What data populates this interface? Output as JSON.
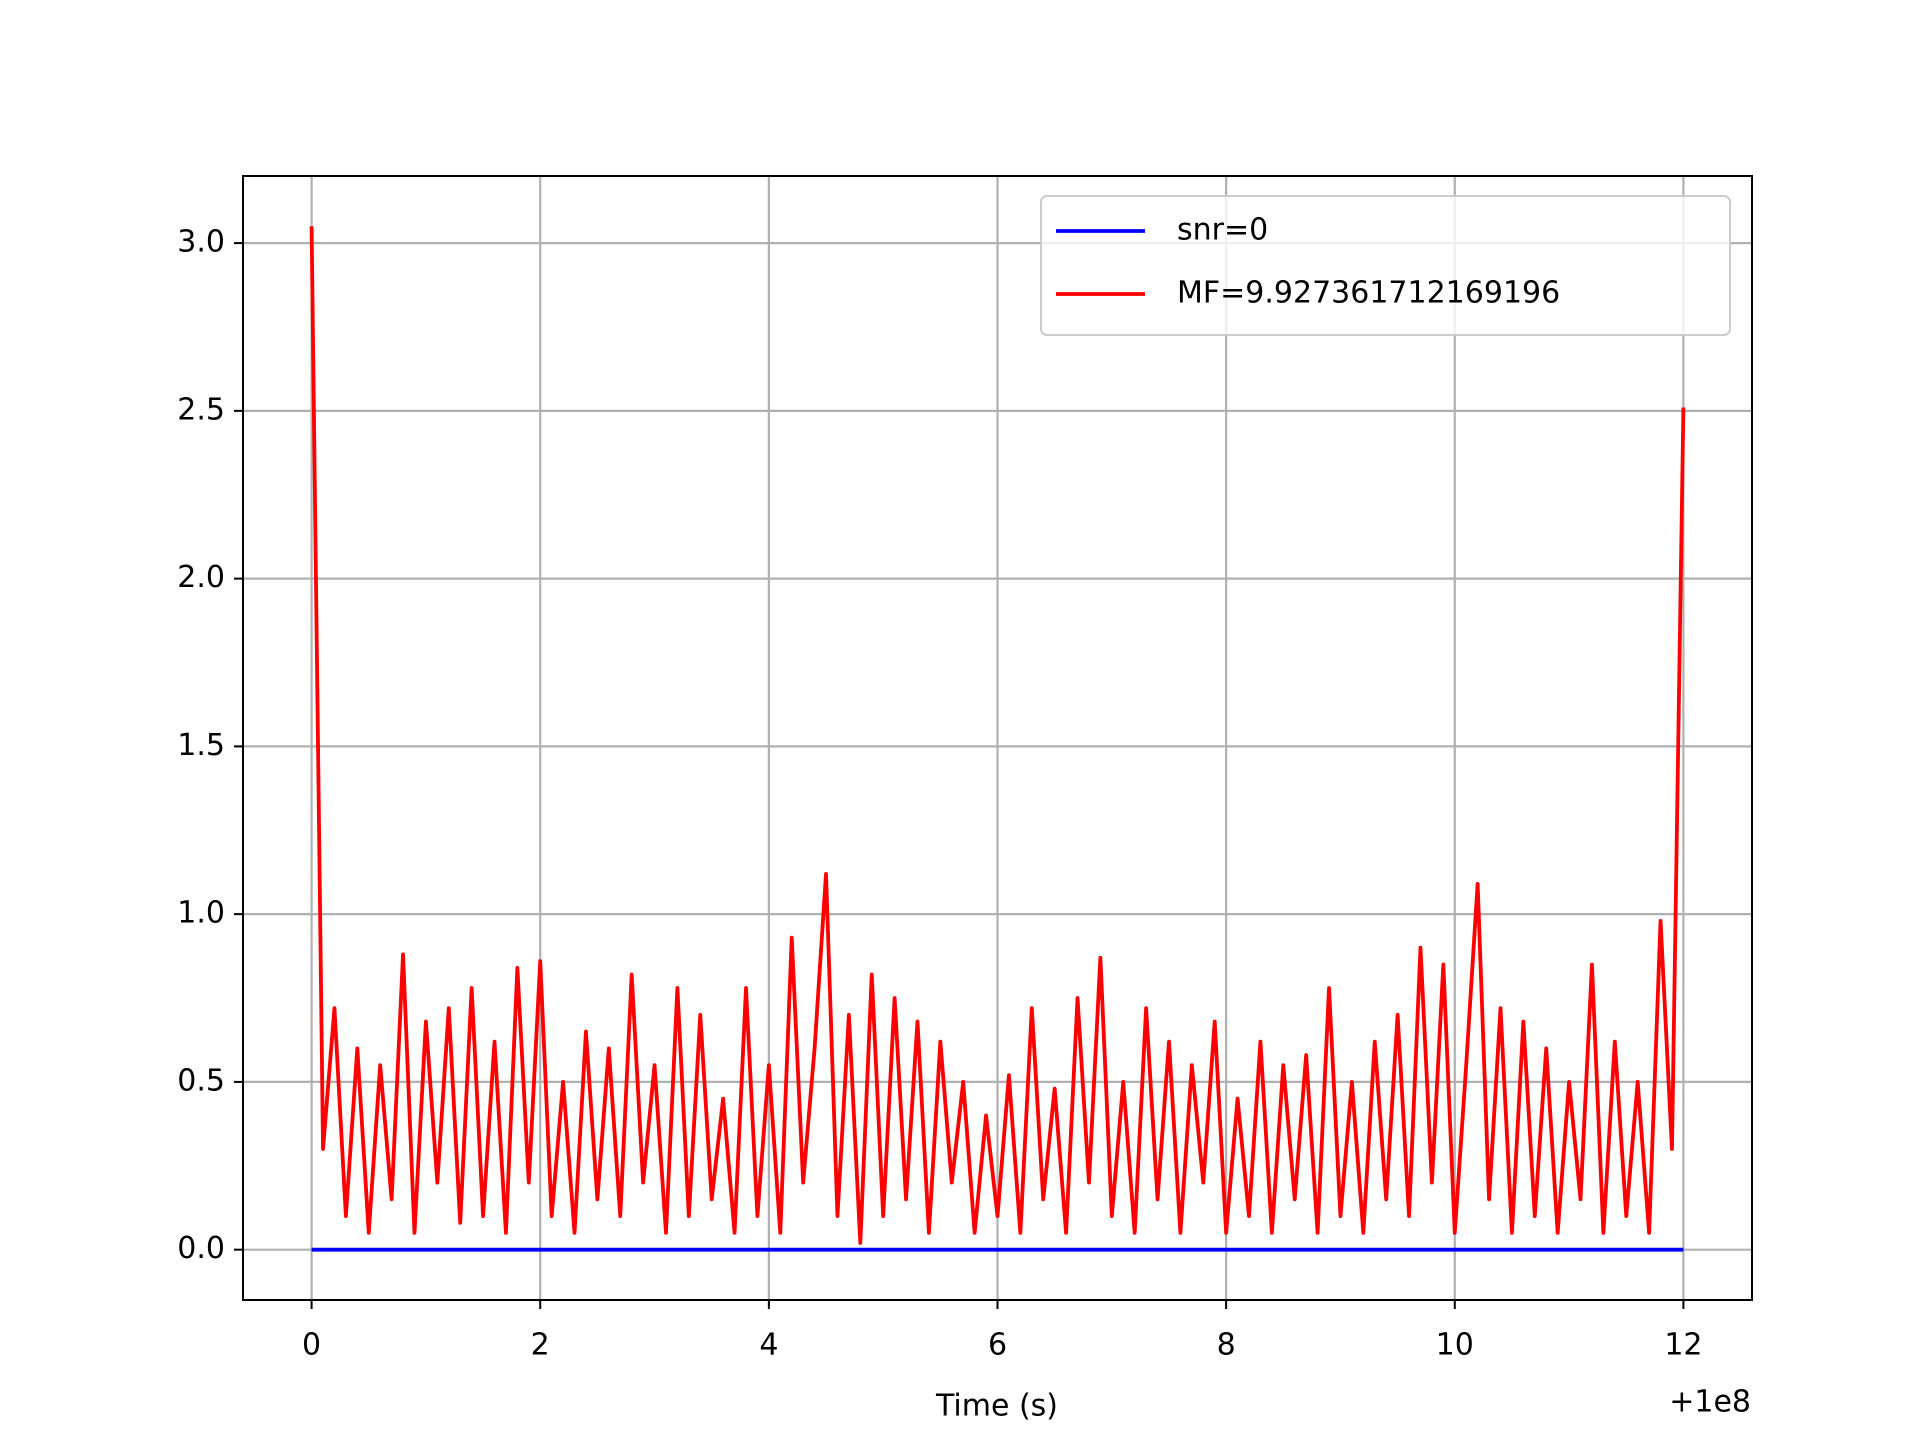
{
  "chart_data": {
    "type": "line",
    "xlabel": "Time (s)",
    "x_offset_label": "+1e8",
    "x": [
      0,
      0.1,
      0.2,
      0.3,
      0.4,
      0.5,
      0.6,
      0.7,
      0.8,
      0.9,
      1.0,
      1.1,
      1.2,
      1.3,
      1.4,
      1.5,
      1.6,
      1.7,
      1.8,
      1.9,
      2.0,
      2.1,
      2.2,
      2.3,
      2.4,
      2.5,
      2.6,
      2.7,
      2.8,
      2.9,
      3.0,
      3.1,
      3.2,
      3.3,
      3.4,
      3.5,
      3.6,
      3.7,
      3.8,
      3.9,
      4.0,
      4.1,
      4.2,
      4.3,
      4.4,
      4.5,
      4.6,
      4.7,
      4.8,
      4.9,
      5.0,
      5.1,
      5.2,
      5.3,
      5.4,
      5.5,
      5.6,
      5.7,
      5.8,
      5.9,
      6.0,
      6.1,
      6.2,
      6.3,
      6.4,
      6.5,
      6.6,
      6.7,
      6.8,
      6.9,
      7.0,
      7.1,
      7.2,
      7.3,
      7.4,
      7.5,
      7.6,
      7.7,
      7.8,
      7.9,
      8.0,
      8.1,
      8.2,
      8.3,
      8.4,
      8.5,
      8.6,
      8.7,
      8.8,
      8.9,
      9.0,
      9.1,
      9.2,
      9.3,
      9.4,
      9.5,
      9.6,
      9.7,
      9.8,
      9.9,
      10.0,
      10.1,
      10.2,
      10.3,
      10.4,
      10.5,
      10.6,
      10.7,
      10.8,
      10.9,
      11.0,
      11.1,
      11.2,
      11.3,
      11.4,
      11.5,
      11.6,
      11.7,
      11.8,
      11.9,
      12.0
    ],
    "series": [
      {
        "name": "snr=0",
        "color": "#0000ff",
        "values": [
          0,
          0,
          0,
          0,
          0,
          0,
          0,
          0,
          0,
          0,
          0,
          0,
          0,
          0,
          0,
          0,
          0,
          0,
          0,
          0,
          0,
          0,
          0,
          0,
          0,
          0,
          0,
          0,
          0,
          0,
          0,
          0,
          0,
          0,
          0,
          0,
          0,
          0,
          0,
          0,
          0,
          0,
          0,
          0,
          0,
          0,
          0,
          0,
          0,
          0,
          0,
          0,
          0,
          0,
          0,
          0,
          0,
          0,
          0,
          0,
          0,
          0,
          0,
          0,
          0,
          0,
          0,
          0,
          0,
          0,
          0,
          0,
          0,
          0,
          0,
          0,
          0,
          0,
          0,
          0,
          0,
          0,
          0,
          0,
          0,
          0,
          0,
          0,
          0,
          0,
          0,
          0,
          0,
          0,
          0,
          0,
          0,
          0,
          0,
          0,
          0,
          0,
          0,
          0,
          0,
          0,
          0,
          0,
          0,
          0,
          0,
          0,
          0,
          0,
          0,
          0,
          0,
          0,
          0,
          0,
          0
        ]
      },
      {
        "name": "MF=9.927361712169196",
        "color": "#ff0000",
        "values": [
          3.05,
          0.3,
          0.72,
          0.1,
          0.6,
          0.05,
          0.55,
          0.15,
          0.88,
          0.05,
          0.68,
          0.2,
          0.72,
          0.08,
          0.78,
          0.1,
          0.62,
          0.05,
          0.84,
          0.2,
          0.86,
          0.1,
          0.5,
          0.05,
          0.65,
          0.15,
          0.6,
          0.1,
          0.82,
          0.2,
          0.55,
          0.05,
          0.78,
          0.1,
          0.7,
          0.15,
          0.45,
          0.05,
          0.78,
          0.1,
          0.55,
          0.05,
          0.93,
          0.2,
          0.6,
          1.12,
          0.1,
          0.7,
          0.02,
          0.82,
          0.1,
          0.75,
          0.15,
          0.68,
          0.05,
          0.62,
          0.2,
          0.5,
          0.05,
          0.4,
          0.1,
          0.52,
          0.05,
          0.72,
          0.15,
          0.48,
          0.05,
          0.75,
          0.2,
          0.87,
          0.1,
          0.5,
          0.05,
          0.72,
          0.15,
          0.62,
          0.05,
          0.55,
          0.2,
          0.68,
          0.05,
          0.45,
          0.1,
          0.62,
          0.05,
          0.55,
          0.15,
          0.58,
          0.05,
          0.78,
          0.1,
          0.5,
          0.05,
          0.62,
          0.15,
          0.7,
          0.1,
          0.9,
          0.2,
          0.85,
          0.05,
          0.55,
          1.09,
          0.15,
          0.72,
          0.05,
          0.68,
          0.1,
          0.6,
          0.05,
          0.5,
          0.15,
          0.85,
          0.05,
          0.62,
          0.1,
          0.5,
          0.05,
          0.98,
          0.3,
          2.51
        ]
      }
    ],
    "xlim": [
      -0.6,
      12.6
    ],
    "xticks": [
      0,
      2,
      4,
      6,
      8,
      10,
      12
    ],
    "ylim": [
      -0.15,
      3.2
    ],
    "yticks": [
      {
        "value": 0,
        "label": "0.0"
      },
      {
        "value": 0.5,
        "label": "0.5"
      },
      {
        "value": 1,
        "label": "1.0"
      },
      {
        "value": 1.5,
        "label": "1.5"
      },
      {
        "value": 2,
        "label": "2.0"
      },
      {
        "value": 2.5,
        "label": "2.5"
      },
      {
        "value": 3,
        "label": "3.0"
      }
    ],
    "grid": true,
    "legend": "upper right"
  }
}
